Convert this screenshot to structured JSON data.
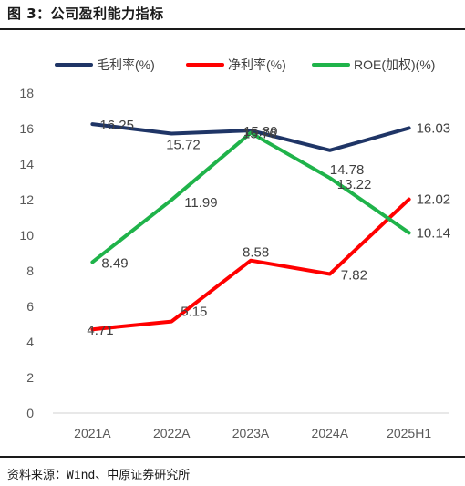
{
  "figure_title": "图 3：公司盈利能力指标",
  "source_note": "资料来源：Wind、中原证券研究所",
  "chart_data": {
    "type": "line",
    "categories": [
      "2021A",
      "2022A",
      "2023A",
      "2024A",
      "2025H1"
    ],
    "ylim": [
      0,
      18
    ],
    "yticks": [
      "0",
      "2",
      "4",
      "6",
      "8",
      "10",
      "12",
      "14",
      "16",
      "18"
    ],
    "grid": false,
    "legend_position": "top",
    "series": [
      {
        "name": "毛利率(%)",
        "color": "#1f3566",
        "values": [
          16.25,
          15.72,
          15.89,
          14.78,
          16.03
        ],
        "labels": [
          "16.25",
          "15.72",
          "15.89",
          "14.78",
          "16.03"
        ]
      },
      {
        "name": "净利率(%)",
        "color": "#ff0000",
        "values": [
          4.71,
          5.15,
          8.58,
          7.82,
          12.02
        ],
        "labels": [
          "4.71",
          "5.15",
          "8.58",
          "7.82",
          "12.02"
        ]
      },
      {
        "name": "ROE(加权)(%)",
        "color": "#1fb34a",
        "values": [
          8.49,
          11.99,
          15.76,
          13.22,
          10.14
        ],
        "labels": [
          "8.49",
          "11.99",
          "15.76",
          "13.22",
          "10.14"
        ]
      }
    ]
  }
}
